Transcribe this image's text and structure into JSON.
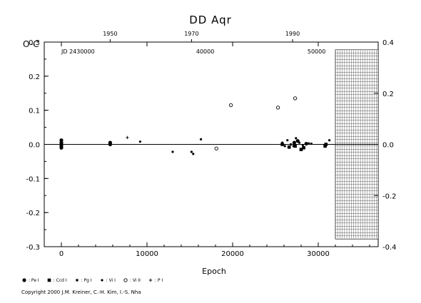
{
  "chart_data": {
    "type": "scatter",
    "title": "DD Aqr",
    "ylabel": "O-C",
    "xlabel": "Epoch",
    "xlim": [
      -2000,
      37000
    ],
    "ylim": [
      -0.3,
      0.3
    ],
    "right_ylim": [
      -0.4,
      0.4
    ],
    "x_ticks": [
      "0",
      "10000",
      "20000",
      "30000"
    ],
    "x_tick_values": [
      0,
      10000,
      20000,
      30000
    ],
    "y_ticks": [
      "0.3",
      "0.2",
      "0.1",
      "0.0",
      "-0.1",
      "-0.2",
      "-0.3"
    ],
    "y_tick_values": [
      0.3,
      0.2,
      0.1,
      0.0,
      -0.1,
      -0.2,
      -0.3
    ],
    "right_y_ticks": [
      "0.4",
      "0.2",
      "0.0",
      "-0.2",
      "-0.4"
    ],
    "right_y_tick_values": [
      0.4,
      0.2,
      0.0,
      -0.2,
      -0.4
    ],
    "top_year_ticks": [
      "1950",
      "1970",
      "1990"
    ],
    "top_year_epochs": [
      5700,
      15200,
      27000
    ],
    "top_jd_ticks": [
      "JD 2430000",
      "40000",
      "50000"
    ],
    "top_jd_epochs": [
      0,
      16800,
      29800
    ],
    "hatch_region": [
      32000,
      37000
    ],
    "grid": false,
    "series": [
      {
        "name": "Pe I",
        "marker": "filled-circle",
        "points": [
          [
            0,
            0.012
          ],
          [
            0,
            0.005
          ],
          [
            0,
            0.0
          ],
          [
            0,
            -0.005
          ],
          [
            0,
            -0.01
          ],
          [
            5700,
            0.005
          ],
          [
            5700,
            0.0
          ],
          [
            27200,
            0.005
          ],
          [
            27600,
            0.01
          ],
          [
            28600,
            0.002
          ]
        ]
      },
      {
        "name": "Ccd I",
        "marker": "filled-square",
        "points": [
          [
            25800,
            0.0
          ],
          [
            26600,
            -0.008
          ],
          [
            27300,
            -0.005
          ],
          [
            28000,
            -0.015
          ],
          [
            28300,
            -0.01
          ],
          [
            30800,
            -0.005
          ],
          [
            30900,
            0.0
          ]
        ]
      },
      {
        "name": "Pg I",
        "marker": "filled-square-small",
        "points": [
          [
            0,
            0.003
          ],
          [
            5700,
            0.002
          ]
        ]
      },
      {
        "name": "Vi I",
        "marker": "small-dot",
        "points": [
          [
            9200,
            0.008
          ],
          [
            13000,
            -0.022
          ],
          [
            15200,
            -0.022
          ],
          [
            15400,
            -0.028
          ],
          [
            16300,
            0.015
          ],
          [
            25800,
            0.005
          ],
          [
            26100,
            -0.005
          ],
          [
            26400,
            0.012
          ],
          [
            26800,
            0.0
          ],
          [
            27100,
            -0.005
          ],
          [
            27400,
            0.018
          ],
          [
            27800,
            0.005
          ],
          [
            28200,
            -0.002
          ],
          [
            28900,
            0.003
          ],
          [
            29200,
            0.002
          ],
          [
            31300,
            0.012
          ]
        ]
      },
      {
        "name": "Vi II",
        "marker": "open-circle",
        "points": [
          [
            18100,
            -0.012
          ],
          [
            19800,
            0.115
          ],
          [
            25300,
            0.108
          ],
          [
            27300,
            0.135
          ]
        ]
      },
      {
        "name": "P I",
        "marker": "plus",
        "points": [
          [
            7700,
            0.02
          ]
        ]
      }
    ]
  },
  "legend": [
    {
      "symbol": "filled-circle",
      "label": ": Pe I"
    },
    {
      "symbol": "filled-square",
      "label": ": Ccd I"
    },
    {
      "symbol": "filled-square-small",
      "label": ": Pg I"
    },
    {
      "symbol": "small-dot",
      "label": ": Vi I"
    },
    {
      "symbol": "open-circle",
      "label": ": Vi II"
    },
    {
      "symbol": "plus",
      "label": ": P I"
    }
  ],
  "copyright": "Copyright 2000 J.M. Kreiner, C.-H. Kim, I.-S. Nha"
}
